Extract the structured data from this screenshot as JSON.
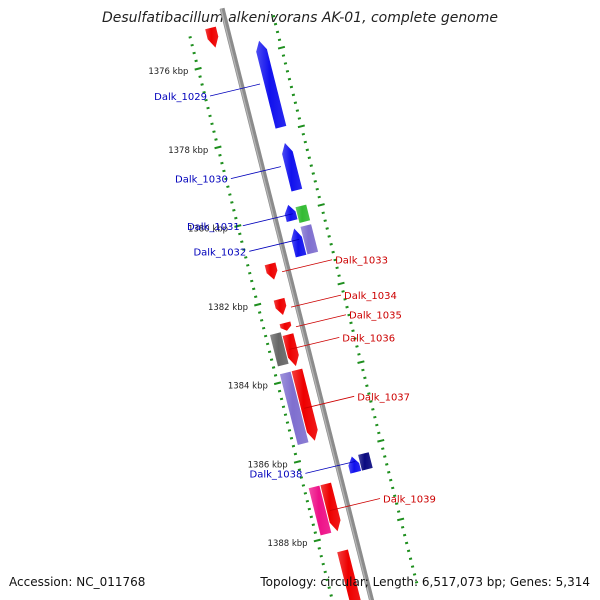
{
  "title": "Desulfatibacillum alkenivorans AK-01, complete genome",
  "footer": {
    "accession": "Accession: NC_011768",
    "summary": "Topology: circular; Length: 6,517,073 bp; Genes: 5,314"
  },
  "colors": {
    "backbone": "#8c8c8c",
    "ticks": "#1e8f1e",
    "forward_label": "#0000bb",
    "reverse_label": "#cc0000",
    "red": "#ee0000",
    "blue": "#1111ee",
    "navy": "#0a0a80",
    "green": "#33bb33",
    "slate": "#7f6fcf",
    "gray": "#666666",
    "pink": "#ee1188"
  },
  "scale": {
    "start_kbp": 1375.2,
    "end_kbp": 1389.7,
    "labels": [
      {
        "kbp": 1376,
        "text": "1376 kbp"
      },
      {
        "kbp": 1378,
        "text": "1378 kbp"
      },
      {
        "kbp": 1380,
        "text": "1380 kbp"
      },
      {
        "kbp": 1382,
        "text": "1382 kbp"
      },
      {
        "kbp": 1384,
        "text": "1384 kbp"
      },
      {
        "kbp": 1386,
        "text": "1386 kbp"
      },
      {
        "kbp": 1388,
        "text": "1388 kbp"
      }
    ]
  },
  "genes": [
    {
      "id": "g-top-red",
      "label": "",
      "strand": "-",
      "track": 1,
      "start": 1375.1,
      "end": 1375.6,
      "color": "red",
      "arrow": true
    },
    {
      "id": "dalk-1029",
      "label": "Dalk_1029",
      "strand": "+",
      "track": 2,
      "start": 1375.7,
      "end": 1377.9,
      "color": "blue",
      "arrow": true
    },
    {
      "id": "dalk-1030",
      "label": "Dalk_1030",
      "strand": "+",
      "track": 2,
      "start": 1378.3,
      "end": 1379.5,
      "color": "blue",
      "arrow": true
    },
    {
      "id": "dalk-1031",
      "label": "Dalk_1031",
      "strand": "+",
      "track": 2,
      "start": 1379.9,
      "end": 1380.3,
      "color": "green",
      "arrow": false
    },
    {
      "id": "dalk-1031b",
      "label": "",
      "strand": "+",
      "track": 1,
      "start": 1379.8,
      "end": 1380.2,
      "color": "blue",
      "arrow": true
    },
    {
      "id": "dalk-1032",
      "label": "Dalk_1032",
      "strand": "+",
      "track": 2,
      "start": 1380.4,
      "end": 1381.1,
      "color": "slate",
      "arrow": false
    },
    {
      "id": "dalk-1032b",
      "label": "",
      "strand": "+",
      "track": 1,
      "start": 1380.4,
      "end": 1381.1,
      "color": "blue",
      "arrow": true
    },
    {
      "id": "dalk-1033",
      "label": "Dalk_1033",
      "strand": "-",
      "track": 1,
      "start": 1381.1,
      "end": 1381.5,
      "color": "red",
      "arrow": true
    },
    {
      "id": "dalk-1034",
      "label": "Dalk_1034",
      "strand": "-",
      "track": 1,
      "start": 1382.0,
      "end": 1382.4,
      "color": "red",
      "arrow": true
    },
    {
      "id": "dalk-1035",
      "label": "Dalk_1035",
      "strand": "-",
      "track": 1,
      "start": 1382.6,
      "end": 1382.8,
      "color": "red",
      "arrow": true
    },
    {
      "id": "dalk-1036a",
      "label": "",
      "strand": "-",
      "track": 1,
      "start": 1382.9,
      "end": 1383.7,
      "color": "red",
      "arrow": true
    },
    {
      "id": "dalk-1036",
      "label": "Dalk_1036",
      "strand": "-",
      "track": 2,
      "start": 1382.8,
      "end": 1383.6,
      "color": "gray",
      "arrow": false
    },
    {
      "id": "dalk-1037a",
      "label": "",
      "strand": "-",
      "track": 1,
      "start": 1383.8,
      "end": 1385.6,
      "color": "red",
      "arrow": true
    },
    {
      "id": "dalk-1037",
      "label": "Dalk_1037",
      "strand": "-",
      "track": 2,
      "start": 1383.8,
      "end": 1385.6,
      "color": "slate",
      "arrow": false
    },
    {
      "id": "dalk-1038",
      "label": "Dalk_1038",
      "strand": "+",
      "track": 2,
      "start": 1386.2,
      "end": 1386.6,
      "color": "navy",
      "arrow": false
    },
    {
      "id": "dalk-1038b",
      "label": "",
      "strand": "+",
      "track": 1,
      "start": 1386.2,
      "end": 1386.6,
      "color": "blue",
      "arrow": true
    },
    {
      "id": "dalk-1039a",
      "label": "",
      "strand": "-",
      "track": 1,
      "start": 1386.7,
      "end": 1387.9,
      "color": "red",
      "arrow": true
    },
    {
      "id": "dalk-1039",
      "label": "Dalk_1039",
      "strand": "-",
      "track": 2,
      "start": 1386.7,
      "end": 1387.9,
      "color": "pink",
      "arrow": false
    },
    {
      "id": "g-bottom-red",
      "label": "",
      "strand": "-",
      "track": 1,
      "start": 1388.4,
      "end": 1389.8,
      "color": "red",
      "arrow": false
    }
  ]
}
